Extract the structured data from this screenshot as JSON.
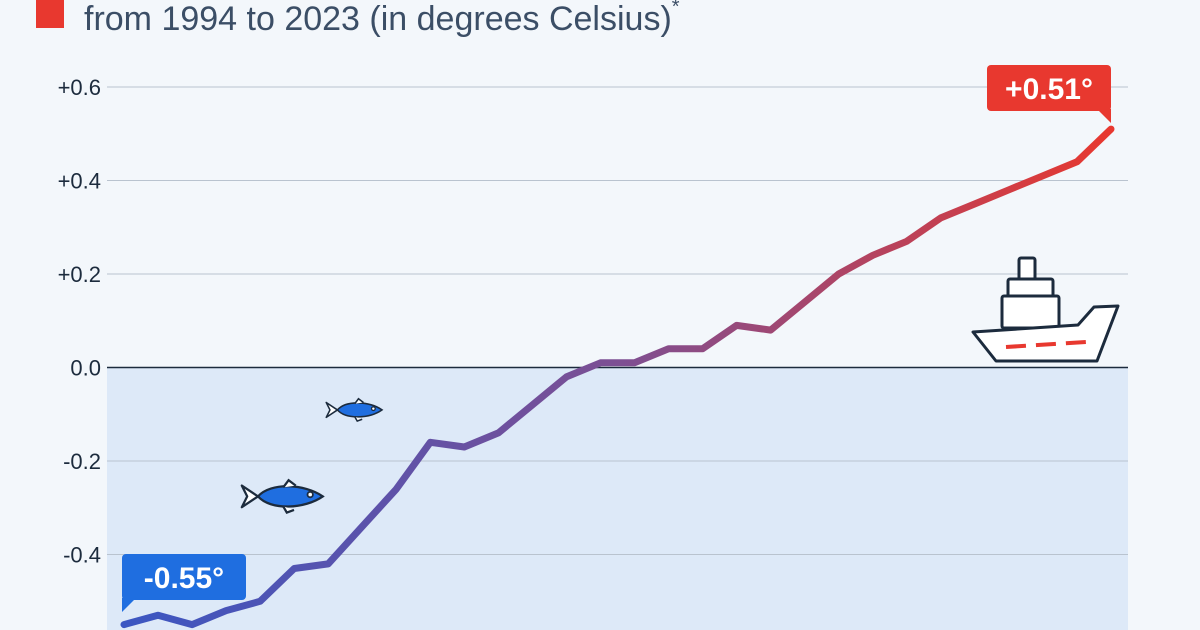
{
  "header": {
    "subtitle": "from 1994 to 2023 (in degrees Celsius)",
    "footnote_mark": "*",
    "accent_color": "#e8382f"
  },
  "chart_data": {
    "type": "line",
    "ylim": [
      -0.56,
      0.66
    ],
    "y_ticks": [
      0.6,
      0.4,
      0.2,
      0.0,
      -0.2,
      -0.4
    ],
    "y_tick_labels": [
      "+0.6",
      "+0.4",
      "+0.2",
      "0.0",
      "-0.2",
      "-0.4"
    ],
    "grid": true,
    "x": [
      1994,
      1995,
      1996,
      1997,
      1998,
      1999,
      2000,
      2001,
      2002,
      2003,
      2004,
      2005,
      2006,
      2007,
      2008,
      2009,
      2010,
      2011,
      2012,
      2013,
      2014,
      2015,
      2016,
      2017,
      2018,
      2019,
      2020,
      2021,
      2022,
      2023
    ],
    "series": [
      {
        "values": [
          -0.55,
          -0.53,
          -0.55,
          -0.52,
          -0.5,
          -0.43,
          -0.42,
          -0.34,
          -0.26,
          -0.16,
          -0.17,
          -0.14,
          -0.08,
          -0.02,
          0.01,
          0.01,
          0.04,
          0.04,
          0.09,
          0.08,
          0.14,
          0.2,
          0.24,
          0.27,
          0.32,
          0.35,
          0.38,
          0.41,
          0.44,
          0.51
        ],
        "color_start": "#3b56c2",
        "color_end": "#e8382f"
      }
    ],
    "annotations": [
      {
        "label": "-0.55°",
        "x": 1994,
        "y": -0.55,
        "color": "#1f6ee0"
      },
      {
        "label": "+0.51°",
        "x": 2023,
        "y": 0.51,
        "color": "#e8382f"
      }
    ],
    "icons": [
      "fish-icon",
      "fish-icon",
      "ship-icon"
    ],
    "colors": {
      "below_zero_fill": "#dde9f8",
      "grid": "#b9c3cf",
      "fish": "#1f6ee0"
    }
  }
}
